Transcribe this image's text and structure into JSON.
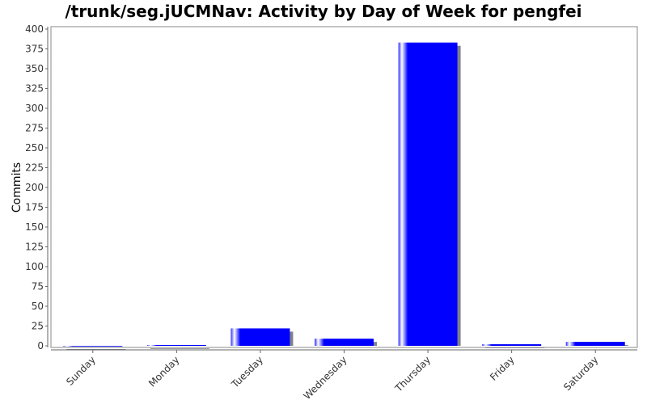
{
  "chart_data": {
    "type": "bar",
    "title": "/trunk/seg.jUCMNav: Activity by Day of Week for pengfei",
    "xlabel": "",
    "ylabel": "Commits",
    "categories": [
      "Sunday",
      "Monday",
      "Tuesday",
      "Wednesday",
      "Thursday",
      "Friday",
      "Saturday"
    ],
    "values": [
      0,
      1,
      22,
      9,
      383,
      2,
      5
    ],
    "ylim": [
      0,
      400
    ],
    "yticks": [
      0,
      25,
      50,
      75,
      100,
      125,
      150,
      175,
      200,
      225,
      250,
      275,
      300,
      325,
      350,
      375,
      400
    ],
    "grid": false,
    "legend": "none",
    "bar_color": "#0000ff",
    "shadow_color": "#808090"
  }
}
